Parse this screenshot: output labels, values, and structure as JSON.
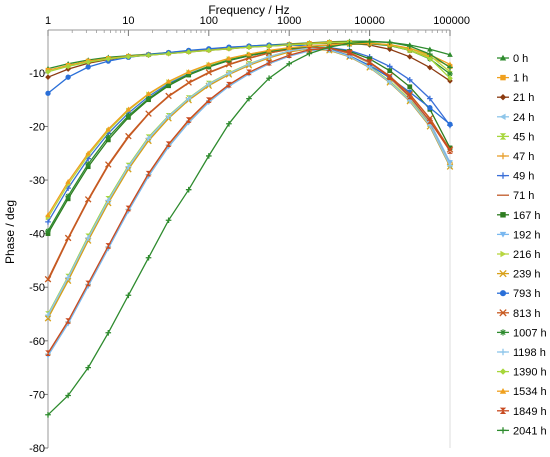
{
  "chart_data": {
    "type": "line",
    "title": "",
    "xlabel": "Frequency / Hz",
    "ylabel": "Phase / deg",
    "x_scale": "log",
    "xlim": [
      1,
      100000
    ],
    "ylim": [
      -80,
      -2
    ],
    "x_ticks": [
      1,
      10,
      100,
      1000,
      10000,
      100000
    ],
    "x_tick_labels": [
      "1",
      "10",
      "100",
      "1000",
      "10000",
      "100000"
    ],
    "y_ticks": [
      -10,
      -20,
      -30,
      -40,
      -50,
      -60,
      -70,
      -80
    ],
    "y_tick_labels": [
      "-10",
      "-20",
      "-30",
      "-40",
      "-50",
      "-60",
      "-70",
      "-80"
    ],
    "grid": false,
    "legend_position": "right",
    "x": [
      1,
      1.78,
      3.16,
      5.62,
      10,
      17.8,
      31.6,
      56.2,
      100,
      178,
      316,
      562,
      1000,
      1780,
      3160,
      5620,
      10000,
      17800,
      31600,
      56200,
      100000
    ],
    "series": [
      {
        "name": "0 h",
        "color": "#2e8b2e",
        "marker": "triangle",
        "values": [
          -9.2,
          -8.3,
          -7.6,
          -7.1,
          -6.8,
          -6.5,
          -6.2,
          -5.9,
          -5.6,
          -5.3,
          -5.0,
          -4.8,
          -4.6,
          -4.4,
          -4.2,
          -4.1,
          -4.1,
          -4.3,
          -4.8,
          -5.6,
          -6.6
        ]
      },
      {
        "name": "1 h",
        "color": "#f0a01e",
        "marker": "square",
        "values": [
          -9.5,
          -8.6,
          -7.8,
          -7.3,
          -6.9,
          -6.6,
          -6.3,
          -6.0,
          -5.7,
          -5.4,
          -5.1,
          -4.9,
          -4.7,
          -4.5,
          -4.3,
          -4.3,
          -4.4,
          -4.9,
          -5.8,
          -7.0,
          -8.8
        ]
      },
      {
        "name": "21 h",
        "color": "#8b3a10",
        "marker": "diamond",
        "values": [
          -10.8,
          -9.3,
          -8.2,
          -7.5,
          -7.0,
          -6.7,
          -6.4,
          -6.1,
          -5.8,
          -5.5,
          -5.2,
          -5.0,
          -4.8,
          -4.6,
          -4.5,
          -4.5,
          -4.8,
          -5.6,
          -7.0,
          -9.0,
          -11.5
        ]
      },
      {
        "name": "24 h",
        "color": "#8ec6ea",
        "marker": "triangle-left",
        "values": [
          -55.5,
          -48.5,
          -41.0,
          -34.0,
          -27.8,
          -22.5,
          -18.3,
          -15.0,
          -12.3,
          -10.2,
          -8.5,
          -7.1,
          -6.0,
          -5.5,
          -5.8,
          -7.0,
          -9.0,
          -11.8,
          -15.3,
          -20.0,
          -27.5
        ]
      },
      {
        "name": "45 h",
        "color": "#a6d63a",
        "marker": "hourglass",
        "values": [
          -55.0,
          -48.0,
          -40.5,
          -33.5,
          -27.3,
          -22.0,
          -18.0,
          -14.7,
          -12.0,
          -10.0,
          -8.3,
          -7.0,
          -5.9,
          -5.4,
          -5.7,
          -6.8,
          -8.8,
          -11.5,
          -15.0,
          -19.5,
          -27.0
        ]
      },
      {
        "name": "47 h",
        "color": "#e8a030",
        "marker": "plus",
        "values": [
          -62.5,
          -56.5,
          -49.5,
          -42.5,
          -35.5,
          -29.0,
          -23.5,
          -19.0,
          -15.3,
          -12.3,
          -10.0,
          -8.2,
          -6.8,
          -5.8,
          -5.5,
          -6.4,
          -8.2,
          -11.0,
          -14.6,
          -19.3,
          -26.8
        ]
      },
      {
        "name": "49 h",
        "color": "#3a6fd8",
        "marker": "plus",
        "values": [
          -37.8,
          -31.5,
          -26.0,
          -21.3,
          -17.5,
          -14.4,
          -12.0,
          -10.2,
          -8.8,
          -7.7,
          -6.8,
          -6.1,
          -5.6,
          -5.3,
          -5.3,
          -5.8,
          -7.0,
          -8.8,
          -11.3,
          -14.8,
          -19.8
        ]
      },
      {
        "name": "71 h",
        "color": "#c05a28",
        "marker": "none",
        "values": [
          -48.8,
          -41.0,
          -33.8,
          -27.3,
          -22.0,
          -17.7,
          -14.4,
          -11.9,
          -10.0,
          -8.5,
          -7.3,
          -6.3,
          -5.6,
          -5.2,
          -5.4,
          -6.3,
          -8.0,
          -10.6,
          -14.0,
          -18.5,
          -24.5
        ]
      },
      {
        "name": "167 h",
        "color": "#2e7d20",
        "marker": "square",
        "values": [
          -40.0,
          -33.5,
          -27.5,
          -22.5,
          -18.3,
          -15.0,
          -12.4,
          -10.4,
          -8.9,
          -7.7,
          -6.8,
          -6.1,
          -5.6,
          -5.3,
          -5.4,
          -6.0,
          -7.4,
          -9.6,
          -12.6,
          -16.8,
          -24.0
        ]
      },
      {
        "name": "192 h",
        "color": "#7ab8f0",
        "marker": "triangle-down",
        "values": [
          -62.8,
          -56.8,
          -49.8,
          -42.8,
          -35.8,
          -29.3,
          -23.8,
          -19.3,
          -15.5,
          -12.5,
          -10.2,
          -8.3,
          -6.9,
          -5.9,
          -5.5,
          -6.3,
          -8.1,
          -10.9,
          -14.5,
          -19.2,
          -26.7
        ]
      },
      {
        "name": "216 h",
        "color": "#b8d640",
        "marker": "triangle-right",
        "values": [
          -37.0,
          -30.8,
          -25.4,
          -20.8,
          -17.0,
          -14.0,
          -11.7,
          -9.9,
          -8.5,
          -7.4,
          -6.5,
          -5.9,
          -5.4,
          -5.1,
          -4.8,
          -4.6,
          -4.5,
          -4.8,
          -5.5,
          -6.8,
          -9.8
        ]
      },
      {
        "name": "239 h",
        "color": "#d8a018",
        "marker": "x",
        "values": [
          -55.8,
          -48.8,
          -41.3,
          -34.3,
          -28.0,
          -22.7,
          -18.5,
          -15.1,
          -12.4,
          -10.3,
          -8.6,
          -7.2,
          -6.1,
          -5.5,
          -5.8,
          -7.0,
          -9.0,
          -11.8,
          -15.3,
          -20.0,
          -27.5
        ]
      },
      {
        "name": "793 h",
        "color": "#2a6fd8",
        "marker": "circle",
        "values": [
          -13.8,
          -10.8,
          -8.9,
          -7.8,
          -7.1,
          -6.6,
          -6.2,
          -5.8,
          -5.5,
          -5.2,
          -5.0,
          -4.8,
          -4.8,
          -5.0,
          -5.6,
          -6.8,
          -8.6,
          -10.9,
          -13.6,
          -16.5,
          -19.6
        ]
      },
      {
        "name": "813 h",
        "color": "#c85a20",
        "marker": "x",
        "values": [
          -48.5,
          -40.8,
          -33.6,
          -27.1,
          -21.8,
          -17.6,
          -14.3,
          -11.8,
          -9.9,
          -8.4,
          -7.2,
          -6.3,
          -5.6,
          -5.2,
          -5.4,
          -6.3,
          -8.0,
          -10.6,
          -14.0,
          -18.5,
          -24.3
        ]
      },
      {
        "name": "1007 h",
        "color": "#2e8b2e",
        "marker": "asterisk",
        "values": [
          -39.5,
          -33.0,
          -27.0,
          -22.0,
          -18.0,
          -14.8,
          -12.2,
          -10.3,
          -8.8,
          -7.6,
          -6.7,
          -6.0,
          -5.5,
          -5.1,
          -4.9,
          -4.7,
          -4.6,
          -4.9,
          -5.8,
          -7.4,
          -10.2
        ]
      },
      {
        "name": "1198 h",
        "color": "#8ec6ea",
        "marker": "plus",
        "values": [
          -55.2,
          -48.2,
          -40.8,
          -33.8,
          -27.5,
          -22.2,
          -18.1,
          -14.8,
          -12.1,
          -10.1,
          -8.4,
          -7.0,
          -5.9,
          -5.4,
          -5.7,
          -6.9,
          -8.9,
          -11.7,
          -15.2,
          -19.8,
          -27.3
        ]
      },
      {
        "name": "1390 h",
        "color": "#a6d63a",
        "marker": "diamond",
        "values": [
          -9.8,
          -8.8,
          -8.0,
          -7.4,
          -7.0,
          -6.7,
          -6.4,
          -6.1,
          -5.8,
          -5.5,
          -5.2,
          -5.0,
          -4.8,
          -4.6,
          -4.4,
          -4.3,
          -4.4,
          -4.8,
          -5.8,
          -7.3,
          -11.0
        ]
      },
      {
        "name": "1534 h",
        "color": "#f0a01e",
        "marker": "triangle",
        "values": [
          -36.5,
          -30.3,
          -25.0,
          -20.5,
          -16.8,
          -13.9,
          -11.6,
          -9.8,
          -8.4,
          -7.3,
          -6.5,
          -5.8,
          -5.3,
          -5.0,
          -4.8,
          -4.6,
          -4.5,
          -4.7,
          -5.4,
          -6.6,
          -8.4
        ]
      },
      {
        "name": "1849 h",
        "color": "#c84a20",
        "marker": "hourglass",
        "values": [
          -62.3,
          -56.3,
          -49.3,
          -42.3,
          -35.3,
          -28.8,
          -23.3,
          -18.8,
          -15.1,
          -12.2,
          -9.9,
          -8.1,
          -6.7,
          -5.7,
          -5.4,
          -6.2,
          -8.0,
          -10.8,
          -14.4,
          -19.0,
          -24.6
        ]
      },
      {
        "name": "2041 h",
        "color": "#2e8b2e",
        "marker": "plus",
        "values": [
          -73.8,
          -70.2,
          -65.0,
          -58.5,
          -51.5,
          -44.5,
          -37.5,
          -31.8,
          -25.5,
          -19.5,
          -14.8,
          -11.0,
          -8.3,
          -6.4,
          -5.2,
          -4.5,
          -4.2,
          -4.3,
          -5.0,
          -6.5,
          -9.0
        ]
      }
    ]
  }
}
